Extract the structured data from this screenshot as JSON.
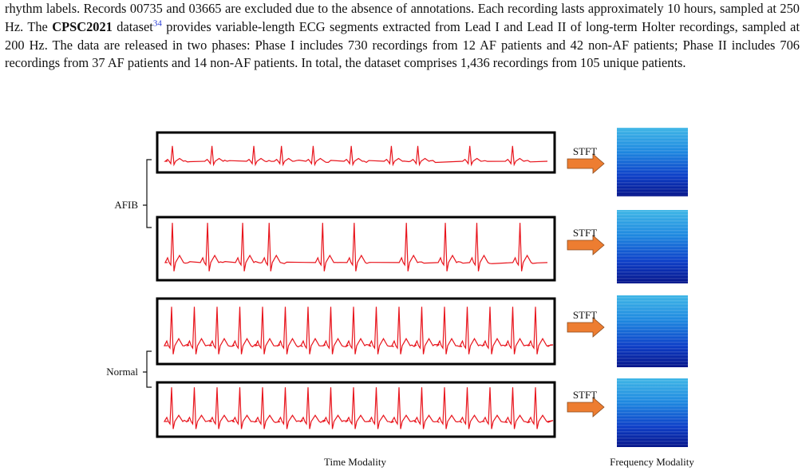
{
  "paragraph": {
    "parts": [
      "rhythm labels. Records 00735 and 03665 are excluded due to the absence of annotations. Each recording lasts approximately 10 hours, sampled at 250 Hz. The ",
      "CPSC2021",
      " dataset",
      "34",
      " provides variable-length ECG segments extracted from Lead I and Lead II of long-term Holter recordings, sampled at 200 Hz. The data are released in two phases: Phase I includes 730 recordings from 12 AF patients and 42 non-AF patients; Phase II includes 706 recordings from 37 AF patients and 14 non-AF patients. In total, the dataset comprises 1,436 recordings from 105 unique patients."
    ]
  },
  "figure": {
    "group_labels": [
      "AFIB",
      "Normal"
    ],
    "stft_labels": [
      "STFT",
      "STFT",
      "STFT",
      "STFT"
    ],
    "time_caption": "Time Modality",
    "frequency_caption": "Frequency Modality"
  }
}
